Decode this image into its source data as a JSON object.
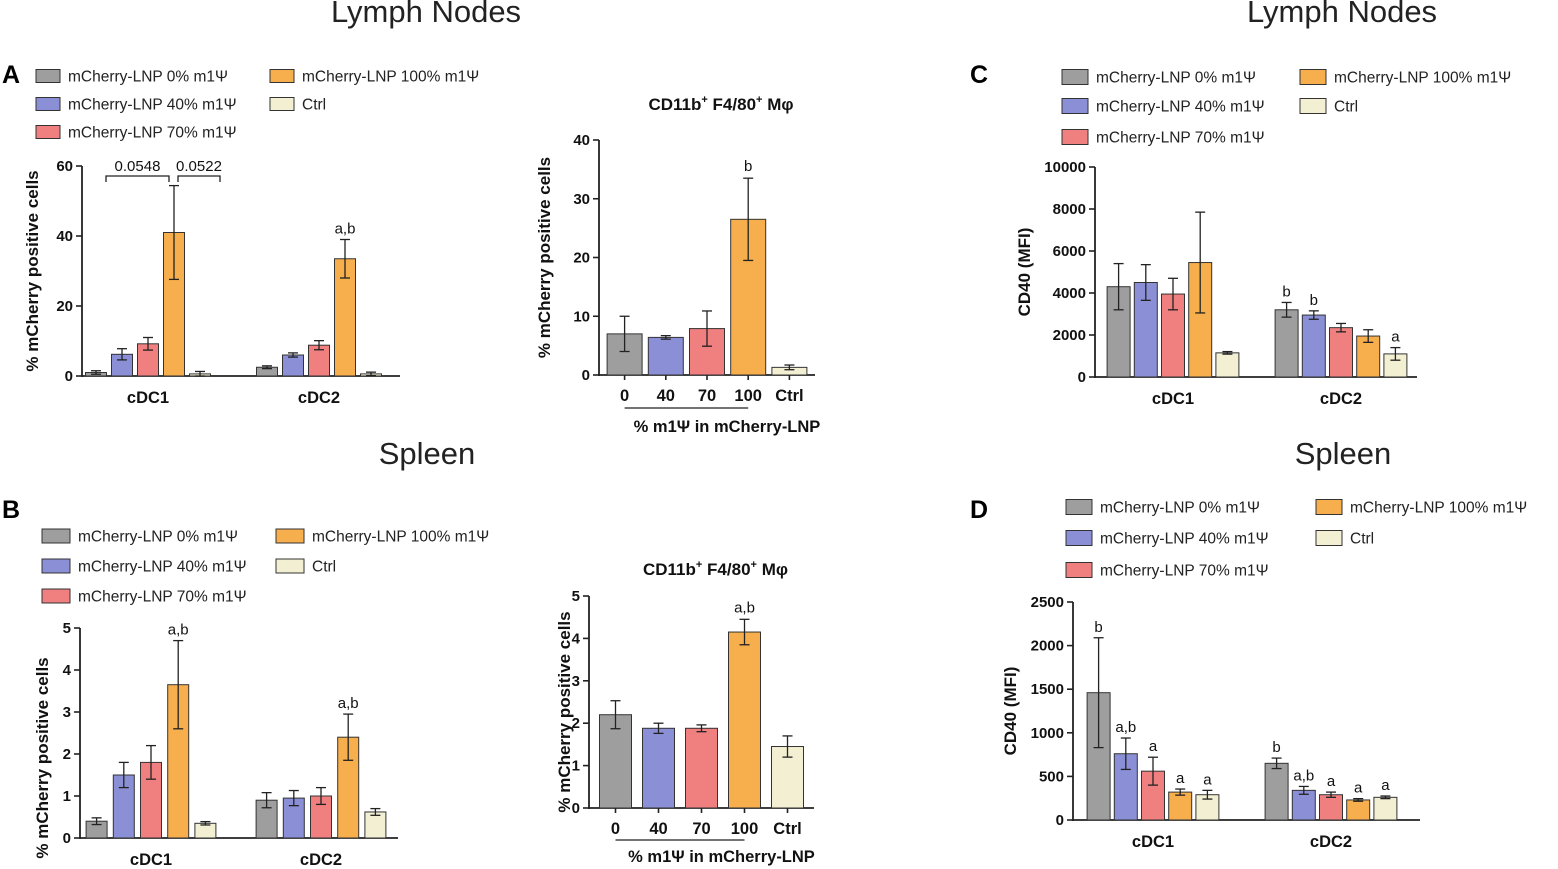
{
  "sections": {
    "lymph_left": "Lymph Nodes",
    "lymph_right": "Lymph Nodes",
    "spleen_left": "Spleen",
    "spleen_right": "Spleen"
  },
  "panel_labels": {
    "A": "A",
    "B": "B",
    "C": "C",
    "D": "D"
  },
  "colors": {
    "gray": "#9e9e9e",
    "blue": "#8a8fd6",
    "red": "#f07f80",
    "orange": "#f7ae4c",
    "cream": "#f2efd2"
  },
  "chart_data": [
    {
      "id": "A-left",
      "type": "bar",
      "title": "",
      "xlabel": "",
      "ylabel": "% mCherry positive cells",
      "ylim": [
        0,
        60
      ],
      "yticks": [
        "0",
        "20",
        "40",
        "60"
      ],
      "legend": [
        "mCherry-LNP 0% m1Ψ",
        "mCherry-LNP 40% m1Ψ",
        "mCherry-LNP 70% m1Ψ",
        "mCherry-LNP 100% m1Ψ",
        "Ctrl"
      ],
      "categories": [
        "cDC1",
        "cDC2"
      ],
      "series": [
        {
          "name": "mCherry-LNP 0% m1Ψ",
          "values": [
            1.0,
            2.5
          ],
          "errors": [
            0.5,
            0.4
          ]
        },
        {
          "name": "mCherry-LNP 40% m1Ψ",
          "values": [
            6.2,
            6.0
          ],
          "errors": [
            1.6,
            0.6
          ]
        },
        {
          "name": "mCherry-LNP 70% m1Ψ",
          "values": [
            9.2,
            8.8
          ],
          "errors": [
            1.8,
            1.3
          ]
        },
        {
          "name": "mCherry-LNP 100% m1Ψ",
          "values": [
            41.0,
            33.5
          ],
          "errors": [
            13.4,
            5.5
          ]
        },
        {
          "name": "Ctrl",
          "values": [
            0.6,
            0.6
          ],
          "errors": [
            0.7,
            0.5
          ]
        }
      ],
      "annotations": [
        {
          "category": 1,
          "series": 3,
          "text": "a,b"
        }
      ],
      "significance": [
        {
          "from_series": 0,
          "to_series": 3,
          "category": 0,
          "text": "0.0548"
        },
        {
          "from_series": 3,
          "to_series": 4,
          "category": 0,
          "text": "0.0522"
        }
      ]
    },
    {
      "id": "A-right",
      "type": "bar",
      "title": "CD11b+ F4/80+ Mφ",
      "title_parts": [
        "CD11b",
        "+",
        " F4/80",
        "+",
        " Mφ"
      ],
      "xlabel": "% m1Ψ in mCherry-LNP",
      "ylabel": "% mCherry positive cells",
      "ylim": [
        0,
        40
      ],
      "yticks": [
        "0",
        "10",
        "20",
        "30",
        "40"
      ],
      "categories": [
        "0",
        "40",
        "70",
        "100",
        "Ctrl"
      ],
      "values": [
        7.0,
        6.4,
        7.9,
        26.5,
        1.3
      ],
      "errors": [
        3.0,
        0.3,
        3.0,
        7.0,
        0.4
      ],
      "annotations": [
        {
          "category": 3,
          "text": "b"
        }
      ]
    },
    {
      "id": "B-left",
      "type": "bar",
      "title": "",
      "xlabel": "",
      "ylabel": "% mCherry positive cells",
      "ylim": [
        0,
        5
      ],
      "yticks": [
        "0",
        "1",
        "2",
        "3",
        "4",
        "5"
      ],
      "legend": [
        "mCherry-LNP 0% m1Ψ",
        "mCherry-LNP 40% m1Ψ",
        "mCherry-LNP 70% m1Ψ",
        "mCherry-LNP 100% m1Ψ",
        "Ctrl"
      ],
      "categories": [
        "cDC1",
        "cDC2"
      ],
      "series": [
        {
          "name": "mCherry-LNP 0% m1Ψ",
          "values": [
            0.4,
            0.9
          ],
          "errors": [
            0.08,
            0.18
          ]
        },
        {
          "name": "mCherry-LNP 40% m1Ψ",
          "values": [
            1.5,
            0.95
          ],
          "errors": [
            0.3,
            0.18
          ]
        },
        {
          "name": "mCherry-LNP 70% m1Ψ",
          "values": [
            1.8,
            1.0
          ],
          "errors": [
            0.4,
            0.2
          ]
        },
        {
          "name": "mCherry-LNP 100% m1Ψ",
          "values": [
            3.65,
            2.4
          ],
          "errors": [
            1.05,
            0.55
          ]
        },
        {
          "name": "Ctrl",
          "values": [
            0.35,
            0.62
          ],
          "errors": [
            0.04,
            0.08
          ]
        }
      ],
      "annotations": [
        {
          "category": 0,
          "series": 3,
          "text": "a,b"
        },
        {
          "category": 1,
          "series": 3,
          "text": "a,b"
        }
      ]
    },
    {
      "id": "B-right",
      "type": "bar",
      "title": "CD11b+ F4/80+ Mφ",
      "title_parts": [
        "CD11b",
        "+",
        " F4/80",
        "+",
        " Mφ"
      ],
      "xlabel": "% m1Ψ in mCherry-LNP",
      "ylabel": "% mCherry positive cells",
      "ylim": [
        0,
        5
      ],
      "yticks": [
        "0",
        "1",
        "2",
        "3",
        "4",
        "5"
      ],
      "categories": [
        "0",
        "40",
        "70",
        "100",
        "Ctrl"
      ],
      "values": [
        2.2,
        1.88,
        1.88,
        4.15,
        1.45
      ],
      "errors": [
        0.33,
        0.12,
        0.08,
        0.3,
        0.25
      ],
      "annotations": [
        {
          "category": 3,
          "text": "a,b"
        }
      ]
    },
    {
      "id": "C",
      "type": "bar",
      "title": "",
      "xlabel": "",
      "ylabel": "CD40 (MFI)",
      "ylim": [
        0,
        10000
      ],
      "yticks": [
        "0",
        "2000",
        "4000",
        "6000",
        "8000",
        "10000"
      ],
      "legend": [
        "mCherry-LNP 0% m1Ψ",
        "mCherry-LNP 40% m1Ψ",
        "mCherry-LNP 70% m1Ψ",
        "mCherry-LNP 100% m1Ψ",
        "Ctrl"
      ],
      "categories": [
        "cDC1",
        "cDC2"
      ],
      "series": [
        {
          "name": "mCherry-LNP 0% m1Ψ",
          "values": [
            4300,
            3200
          ],
          "errors": [
            1100,
            350
          ]
        },
        {
          "name": "mCherry-LNP 40% m1Ψ",
          "values": [
            4500,
            2950
          ],
          "errors": [
            850,
            200
          ]
        },
        {
          "name": "mCherry-LNP 70% m1Ψ",
          "values": [
            3950,
            2350
          ],
          "errors": [
            750,
            200
          ]
        },
        {
          "name": "mCherry-LNP 100% m1Ψ",
          "values": [
            5450,
            1950
          ],
          "errors": [
            2400,
            300
          ]
        },
        {
          "name": "Ctrl",
          "values": [
            1150,
            1100
          ],
          "errors": [
            60,
            300
          ]
        }
      ],
      "annotations": [
        {
          "category": 1,
          "series": 0,
          "text": "b"
        },
        {
          "category": 1,
          "series": 1,
          "text": "b"
        },
        {
          "category": 1,
          "series": 4,
          "text": "a"
        }
      ]
    },
    {
      "id": "D",
      "type": "bar",
      "title": "",
      "xlabel": "",
      "ylabel": "CD40 (MFI)",
      "ylim": [
        0,
        2500
      ],
      "yticks": [
        "0",
        "500",
        "1000",
        "1500",
        "2000",
        "2500"
      ],
      "legend": [
        "mCherry-LNP 0% m1Ψ",
        "mCherry-LNP 40% m1Ψ",
        "mCherry-LNP 70% m1Ψ",
        "mCherry-LNP 100% m1Ψ",
        "Ctrl"
      ],
      "categories": [
        "cDC1",
        "cDC2"
      ],
      "series": [
        {
          "name": "mCherry-LNP 0% m1Ψ",
          "values": [
            1460,
            650
          ],
          "errors": [
            630,
            60
          ]
        },
        {
          "name": "mCherry-LNP 40% m1Ψ",
          "values": [
            760,
            340
          ],
          "errors": [
            180,
            45
          ]
        },
        {
          "name": "mCherry-LNP 70% m1Ψ",
          "values": [
            560,
            290
          ],
          "errors": [
            160,
            30
          ]
        },
        {
          "name": "mCherry-LNP 100% m1Ψ",
          "values": [
            320,
            230
          ],
          "errors": [
            35,
            15
          ]
        },
        {
          "name": "Ctrl",
          "values": [
            290,
            260
          ],
          "errors": [
            50,
            15
          ]
        }
      ],
      "annotations": [
        {
          "category": 0,
          "series": 0,
          "text": "b"
        },
        {
          "category": 0,
          "series": 1,
          "text": "a,b"
        },
        {
          "category": 0,
          "series": 2,
          "text": "a"
        },
        {
          "category": 0,
          "series": 3,
          "text": "a"
        },
        {
          "category": 0,
          "series": 4,
          "text": "a"
        },
        {
          "category": 1,
          "series": 0,
          "text": "b"
        },
        {
          "category": 1,
          "series": 1,
          "text": "a,b"
        },
        {
          "category": 1,
          "series": 2,
          "text": "a"
        },
        {
          "category": 1,
          "series": 3,
          "text": "a"
        },
        {
          "category": 1,
          "series": 4,
          "text": "a"
        }
      ]
    }
  ]
}
